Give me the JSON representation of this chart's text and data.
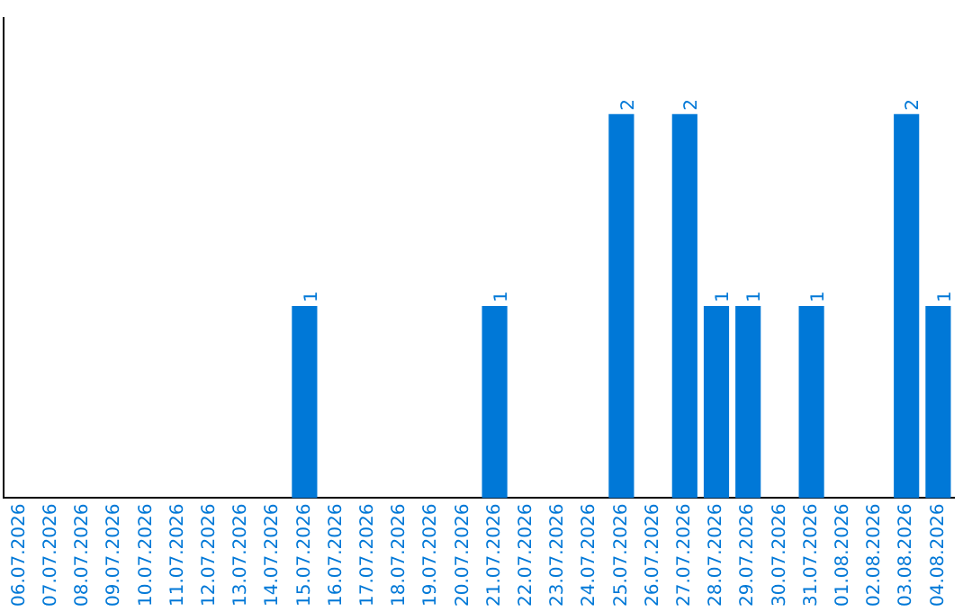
{
  "chart_data": {
    "type": "bar",
    "categories": [
      "06.07.2026",
      "07.07.2026",
      "08.07.2026",
      "09.07.2026",
      "10.07.2026",
      "11.07.2026",
      "12.07.2026",
      "13.07.2026",
      "14.07.2026",
      "15.07.2026",
      "16.07.2026",
      "17.07.2026",
      "18.07.2026",
      "19.07.2026",
      "20.07.2026",
      "21.07.2026",
      "22.07.2026",
      "23.07.2026",
      "24.07.2026",
      "25.07.2026",
      "26.07.2026",
      "27.07.2026",
      "28.07.2026",
      "29.07.2026",
      "30.07.2026",
      "31.07.2026",
      "01.08.2026",
      "02.08.2026",
      "03.08.2026",
      "04.08.2026"
    ],
    "values": [
      0,
      0,
      0,
      0,
      0,
      0,
      0,
      0,
      0,
      1,
      0,
      0,
      0,
      0,
      0,
      1,
      0,
      0,
      0,
      2,
      0,
      2,
      1,
      1,
      0,
      1,
      0,
      0,
      2,
      1
    ],
    "color": "#0078d7",
    "value_labels": [
      null,
      null,
      null,
      null,
      null,
      null,
      null,
      null,
      null,
      "1",
      null,
      null,
      null,
      null,
      null,
      "1",
      null,
      null,
      null,
      "2",
      null,
      "2",
      "1",
      "1",
      null,
      "1",
      null,
      null,
      "2",
      "1"
    ],
    "grid": false,
    "legend": false,
    "tick_labels": "x"
  }
}
